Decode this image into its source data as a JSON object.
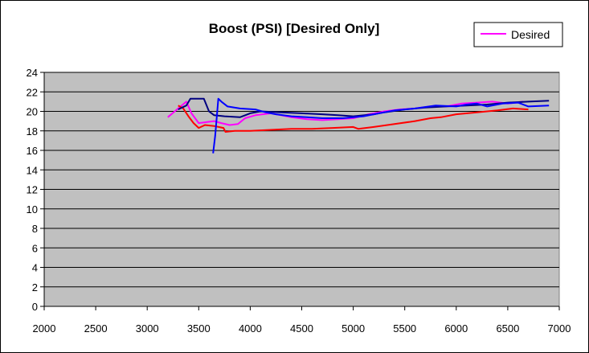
{
  "chart_data": {
    "type": "line",
    "title": "Boost (PSI) [Desired Only]",
    "xlabel": "",
    "ylabel": "",
    "xlim": [
      2000,
      7000
    ],
    "ylim": [
      0,
      24
    ],
    "x_ticks": [
      "2000",
      "2500",
      "3000",
      "3500",
      "4000",
      "4500",
      "5000",
      "5500",
      "6000",
      "6500",
      "7000"
    ],
    "y_ticks": [
      "0",
      "2",
      "4",
      "6",
      "8",
      "10",
      "12",
      "14",
      "16",
      "18",
      "20",
      "22",
      "24"
    ],
    "grid": "horizontal",
    "legend": {
      "position": "top-right",
      "entries": [
        {
          "label": "Desired",
          "color": "#ff00ff"
        }
      ]
    },
    "plot_background": "#c0c0c0",
    "series": [
      {
        "name": "Desired",
        "color": "#ff00ff",
        "points": [
          [
            3200,
            19.4
          ],
          [
            3300,
            20.3
          ],
          [
            3380,
            21.0
          ],
          [
            3430,
            19.8
          ],
          [
            3500,
            18.8
          ],
          [
            3580,
            18.9
          ],
          [
            3650,
            19.0
          ],
          [
            3720,
            18.8
          ],
          [
            3800,
            18.6
          ],
          [
            3880,
            18.7
          ],
          [
            3950,
            19.3
          ],
          [
            4050,
            19.6
          ],
          [
            4200,
            19.8
          ],
          [
            4300,
            19.6
          ],
          [
            4400,
            19.4
          ],
          [
            4550,
            19.2
          ],
          [
            4700,
            19.1
          ],
          [
            4850,
            19.2
          ],
          [
            5000,
            19.3
          ],
          [
            5150,
            19.7
          ],
          [
            5300,
            20.0
          ],
          [
            5450,
            20.2
          ],
          [
            5600,
            20.3
          ],
          [
            5750,
            20.5
          ],
          [
            5900,
            20.5
          ],
          [
            6050,
            20.8
          ],
          [
            6200,
            20.9
          ],
          [
            6350,
            21.0
          ],
          [
            6500,
            20.8
          ],
          [
            6650,
            21.0
          ]
        ]
      },
      {
        "color": "#ff0000",
        "points": [
          [
            3300,
            20.6
          ],
          [
            3350,
            20.3
          ],
          [
            3400,
            19.5
          ],
          [
            3450,
            18.8
          ],
          [
            3500,
            18.3
          ],
          [
            3560,
            18.6
          ],
          [
            3650,
            18.5
          ],
          [
            3740,
            18.3
          ],
          [
            3760,
            17.9
          ],
          [
            3850,
            18.0
          ],
          [
            4000,
            18.0
          ],
          [
            4200,
            18.1
          ],
          [
            4400,
            18.2
          ],
          [
            4600,
            18.2
          ],
          [
            4800,
            18.3
          ],
          [
            5000,
            18.4
          ],
          [
            5050,
            18.2
          ],
          [
            5200,
            18.4
          ],
          [
            5400,
            18.7
          ],
          [
            5600,
            19.0
          ],
          [
            5750,
            19.3
          ],
          [
            5850,
            19.4
          ],
          [
            6000,
            19.7
          ],
          [
            6200,
            19.9
          ],
          [
            6400,
            20.1
          ],
          [
            6550,
            20.3
          ],
          [
            6700,
            20.2
          ]
        ]
      },
      {
        "color": "#000080",
        "points": [
          [
            3300,
            20.2
          ],
          [
            3380,
            20.6
          ],
          [
            3420,
            21.3
          ],
          [
            3550,
            21.3
          ],
          [
            3600,
            20.0
          ],
          [
            3650,
            19.6
          ],
          [
            3750,
            19.5
          ],
          [
            3900,
            19.4
          ],
          [
            4000,
            19.8
          ],
          [
            4100,
            20.0
          ],
          [
            4300,
            19.9
          ],
          [
            4500,
            19.8
          ],
          [
            4700,
            19.7
          ],
          [
            4850,
            19.6
          ],
          [
            5000,
            19.5
          ],
          [
            5200,
            19.7
          ],
          [
            5300,
            19.9
          ],
          [
            5500,
            20.2
          ],
          [
            5700,
            20.4
          ],
          [
            5900,
            20.5
          ],
          [
            6100,
            20.6
          ],
          [
            6300,
            20.7
          ],
          [
            6500,
            20.9
          ],
          [
            6700,
            21.0
          ],
          [
            6900,
            21.1
          ]
        ]
      },
      {
        "color": "#0000ff",
        "points": [
          [
            3640,
            15.7
          ],
          [
            3660,
            17.5
          ],
          [
            3690,
            21.3
          ],
          [
            3720,
            21.0
          ],
          [
            3780,
            20.5
          ],
          [
            3900,
            20.3
          ],
          [
            4050,
            20.2
          ],
          [
            4150,
            19.9
          ],
          [
            4250,
            19.7
          ],
          [
            4400,
            19.5
          ],
          [
            4550,
            19.4
          ],
          [
            4700,
            19.3
          ],
          [
            4900,
            19.3
          ],
          [
            5100,
            19.5
          ],
          [
            5250,
            19.8
          ],
          [
            5400,
            20.1
          ],
          [
            5600,
            20.3
          ],
          [
            5800,
            20.6
          ],
          [
            6000,
            20.5
          ],
          [
            6100,
            20.7
          ],
          [
            6200,
            20.8
          ],
          [
            6300,
            20.5
          ],
          [
            6450,
            20.8
          ],
          [
            6600,
            20.9
          ],
          [
            6700,
            20.5
          ],
          [
            6900,
            20.6
          ]
        ]
      }
    ]
  }
}
